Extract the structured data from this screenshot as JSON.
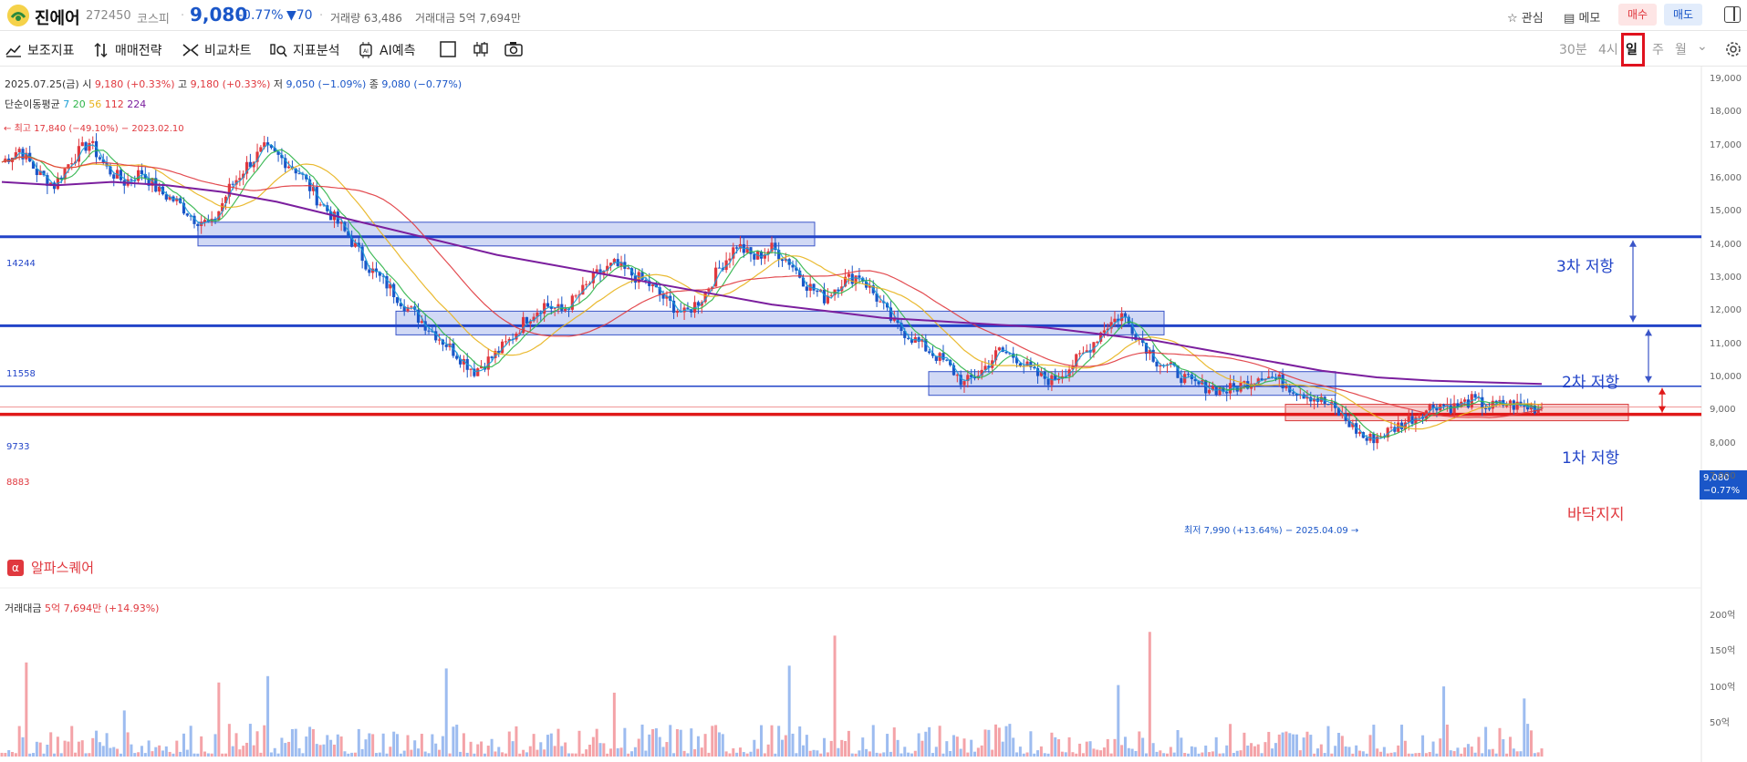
{
  "header": {
    "name": "진에어",
    "code": "272450",
    "market": "코스피",
    "price": "9,080",
    "change_rate": "-0.77%",
    "change": "▼70",
    "volume_label": "거래량 63,486",
    "amount_label": "거래대금 5억 7,694만",
    "watch_label": "관심",
    "memo_label": "메모",
    "buy_label": "매수",
    "sell_label": "매도"
  },
  "toolbar": {
    "items": [
      "보조지표",
      "매매전략",
      "비교차트",
      "지표분석",
      "AI예측"
    ],
    "timeframes": [
      "30분",
      "4시",
      "일",
      "주",
      "월"
    ],
    "active_timeframe": "일"
  },
  "info": {
    "date": "2025.07.25(금)",
    "open_label": "시",
    "open": "9,180 (+0.33%)",
    "high_label": "고",
    "high": "9,180 (+0.33%)",
    "low_label": "저",
    "low": "9,050 (−1.09%)",
    "close_label": "종",
    "close": "9,080 (−0.77%)",
    "ma_label": "단순이동평균",
    "ma_periods": [
      "7",
      "20",
      "56",
      "112",
      "224"
    ]
  },
  "colors": {
    "up": "#e0383e",
    "down": "#1a56c8",
    "ma7": "#1a9fd6",
    "ma20": "#2fb54a",
    "ma56": "#e8b21b",
    "ma112": "#e0383e",
    "ma224": "#7b1f9e",
    "resistance": "#2244c8",
    "support": "#e01818"
  },
  "chart_data": {
    "type": "candlestick",
    "y_axis_ticks": [
      19000,
      18000,
      17000,
      16000,
      15000,
      14000,
      13000,
      12000,
      11000,
      10000,
      9000,
      8000,
      7000
    ],
    "y_tick_labels": [
      "19,000",
      "18,000",
      "17,000",
      "16,000",
      "15,000",
      "14,000",
      "13,000",
      "12,000",
      "11,000",
      "10,000",
      "9,000",
      "8,000",
      "7,000"
    ],
    "ylim": [
      6800,
      19200
    ],
    "high_marker": "최고 17,840 (−49.10%) − 2023.02.10",
    "low_marker": "최저 7,990 (+13.64%) − 2025.04.09",
    "last_price": "9,080",
    "last_rate": "−0.77%",
    "levels": [
      {
        "label": "14244",
        "value": 14244,
        "annotation": "3차 저항"
      },
      {
        "label": "11558",
        "value": 11558,
        "annotation": "2차 저항"
      },
      {
        "label": "9733",
        "value": 9733,
        "annotation": "1차 저항"
      },
      {
        "label": "8883",
        "value": 8883,
        "annotation": "바닥지지"
      }
    ],
    "price_path": [
      16500,
      16900,
      16200,
      15800,
      16600,
      17100,
      16300,
      15900,
      16200,
      15600,
      15300,
      14800,
      14600,
      15700,
      16400,
      16900,
      16600,
      16200,
      15400,
      14800,
      14100,
      13300,
      12800,
      12200,
      11700,
      11200,
      10700,
      10200,
      10600,
      11100,
      11800,
      12200,
      12000,
      12500,
      13100,
      13400,
      13100,
      12800,
      12300,
      11900,
      12400,
      13300,
      14000,
      13600,
      13900,
      13500,
      12800,
      12400,
      12900,
      13100,
      12400,
      11600,
      11200,
      10800,
      10400,
      9800,
      10200,
      10800,
      10600,
      10100,
      9900,
      10300,
      10800,
      11500,
      11900,
      11200,
      10500,
      10200,
      9800,
      9700,
      9600,
      9800,
      10100,
      9900,
      9600,
      9400,
      9100,
      8600,
      8100,
      8300,
      8600,
      8900,
      9200,
      9100,
      9300,
      9100,
      9200,
      9100,
      9080
    ],
    "ma224_path": [
      15900,
      15800,
      15900,
      15800,
      15600,
      15300,
      14900,
      14500,
      14100,
      13700,
      13400,
      13100,
      12800,
      12500,
      12200,
      12000,
      11800,
      11700,
      11600,
      11500,
      11300,
      11100,
      10800,
      10500,
      10200,
      10000,
      9900,
      9850,
      9800
    ],
    "volume": {
      "label": "거래대금",
      "value": "5억 7,694만 (+14.93%)",
      "ticks": [
        "200억",
        "150억",
        "100억",
        "50억"
      ],
      "tick_values": [
        200,
        150,
        100,
        50
      ],
      "ylim": [
        0,
        215
      ]
    }
  },
  "panel": {
    "alpha_label": "알파스퀘어"
  }
}
